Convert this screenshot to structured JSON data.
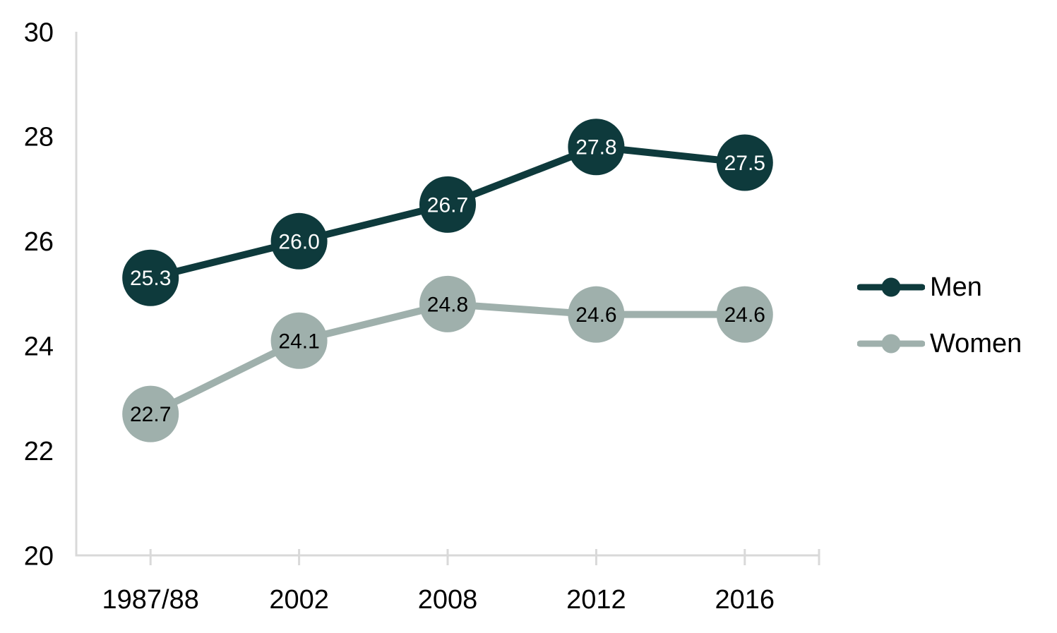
{
  "chart_data": {
    "type": "line",
    "title": "",
    "xlabel": "",
    "ylabel": "",
    "categories": [
      "1987/88",
      "2002",
      "2008",
      "2012",
      "2016"
    ],
    "series": [
      {
        "name": "Men",
        "values": [
          25.3,
          26.0,
          26.7,
          27.8,
          27.5
        ],
        "labels": [
          "25.3",
          "26.0",
          "26.7",
          "27.8",
          "27.5"
        ],
        "color": "#0e3a3c",
        "label_color": "#ffffff"
      },
      {
        "name": "Women",
        "values": [
          22.7,
          24.1,
          24.8,
          24.6,
          24.6
        ],
        "labels": [
          "22.7",
          "24.1",
          "24.8",
          "24.6",
          "24.6"
        ],
        "color": "#9fb0ac",
        "label_color": "#000000"
      }
    ],
    "ylim": [
      20,
      30
    ],
    "yticks": [
      20,
      22,
      24,
      26,
      28,
      30
    ],
    "grid": false,
    "legend_position": "right",
    "axis_color": "#d9d9d9",
    "text_color": "#000000",
    "background": "#ffffff"
  }
}
